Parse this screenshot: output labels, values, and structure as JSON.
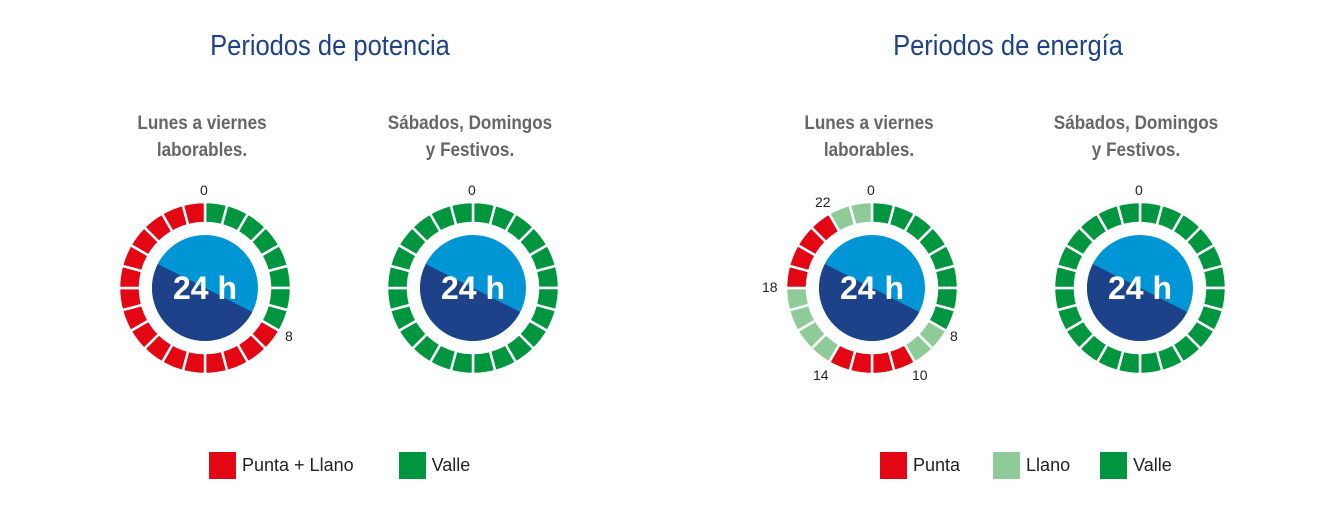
{
  "colors": {
    "punta": "#e30613",
    "llano": "#8fcb98",
    "valle": "#009640",
    "center_dark": "#1d4289",
    "center_light": "#0095d5",
    "title": "#1d4289"
  },
  "potencia": {
    "title": "Periodos de potencia",
    "legend": [
      {
        "label": "Punta + Llano",
        "color": "#e30613"
      },
      {
        "label": "Valle",
        "color": "#009640"
      }
    ],
    "dials": [
      {
        "subtitle_1": "Lunes a viernes",
        "subtitle_2": "laborables.",
        "center": "24 h",
        "labels": [
          "0",
          "8"
        ],
        "hours": [
          "valle",
          "valle",
          "valle",
          "valle",
          "valle",
          "valle",
          "valle",
          "valle",
          "punta",
          "punta",
          "punta",
          "punta",
          "punta",
          "punta",
          "punta",
          "punta",
          "punta",
          "punta",
          "punta",
          "punta",
          "punta",
          "punta",
          "punta",
          "punta"
        ]
      },
      {
        "subtitle_1": "Sábados, Domingos",
        "subtitle_2": "y Festivos.",
        "center": "24 h",
        "labels": [
          "0"
        ],
        "hours": [
          "valle",
          "valle",
          "valle",
          "valle",
          "valle",
          "valle",
          "valle",
          "valle",
          "valle",
          "valle",
          "valle",
          "valle",
          "valle",
          "valle",
          "valle",
          "valle",
          "valle",
          "valle",
          "valle",
          "valle",
          "valle",
          "valle",
          "valle",
          "valle"
        ]
      }
    ]
  },
  "energia": {
    "title": "Periodos de energía",
    "legend": [
      {
        "label": "Punta",
        "color": "#e30613"
      },
      {
        "label": "Llano",
        "color": "#8fcb98"
      },
      {
        "label": "Valle",
        "color": "#009640"
      }
    ],
    "dials": [
      {
        "subtitle_1": "Lunes a viernes",
        "subtitle_2": "laborables.",
        "center": "24 h",
        "labels": [
          "0",
          "8",
          "10",
          "14",
          "18",
          "22"
        ],
        "hours": [
          "valle",
          "valle",
          "valle",
          "valle",
          "valle",
          "valle",
          "valle",
          "valle",
          "llano",
          "llano",
          "punta",
          "punta",
          "punta",
          "punta",
          "llano",
          "llano",
          "llano",
          "llano",
          "punta",
          "punta",
          "punta",
          "punta",
          "llano",
          "llano"
        ]
      },
      {
        "subtitle_1": "Sábados, Domingos",
        "subtitle_2": "y Festivos.",
        "center": "24 h",
        "labels": [
          "0"
        ],
        "hours": [
          "valle",
          "valle",
          "valle",
          "valle",
          "valle",
          "valle",
          "valle",
          "valle",
          "valle",
          "valle",
          "valle",
          "valle",
          "valle",
          "valle",
          "valle",
          "valle",
          "valle",
          "valle",
          "valle",
          "valle",
          "valle",
          "valle",
          "valle",
          "valle"
        ]
      }
    ]
  }
}
